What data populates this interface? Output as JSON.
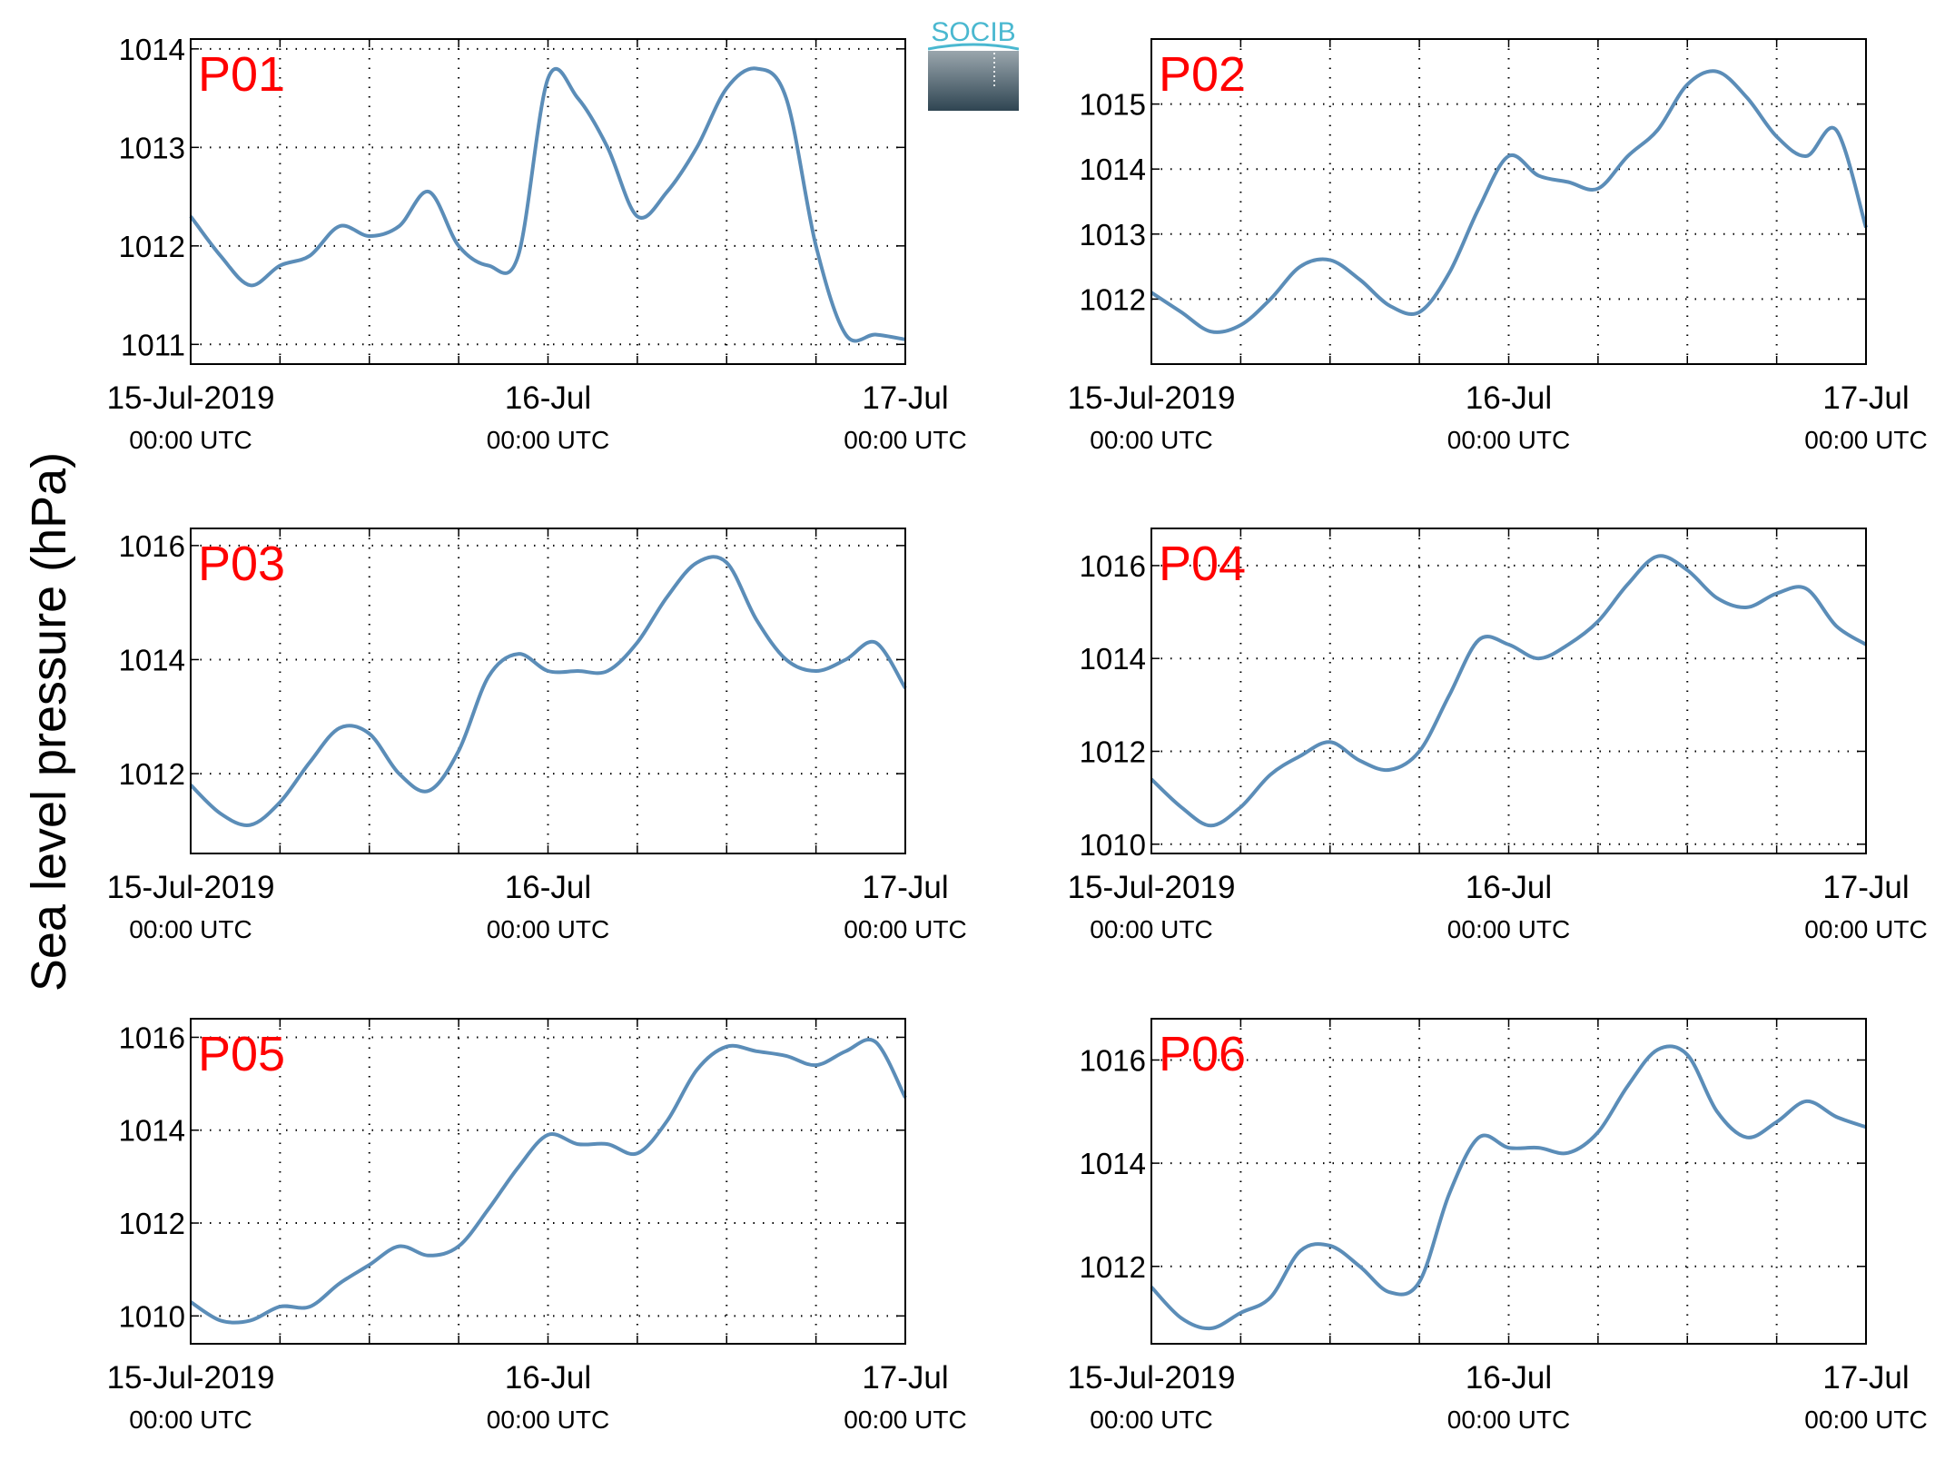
{
  "figure": {
    "ylabel": "Sea level pressure (hPa)",
    "logo_text": "SOCIB",
    "x_tick_labels": [
      {
        "date": "15-Jul-2019",
        "time": "00:00 UTC"
      },
      {
        "date": "16-Jul",
        "time": "00:00 UTC"
      },
      {
        "date": "17-Jul",
        "time": "00:00 UTC"
      }
    ]
  },
  "colors": {
    "line": "#5b8db8",
    "station_label": "#ff0000",
    "axes": "#000000",
    "grid": "#000000",
    "logo_text": "#4ab8d0",
    "logo_top": "#9aa6ad",
    "logo_bottom": "#2f4552"
  },
  "chart_data": [
    {
      "type": "line",
      "title": "P01",
      "xlabel": "",
      "ylabel": "",
      "xlim": [
        "2019-07-15 00:00",
        "2019-07-17 00:00"
      ],
      "ylim": [
        1010.8,
        1014.1
      ],
      "yticks": [
        1011,
        1012,
        1013,
        1014
      ],
      "grid": true,
      "x": [
        "2019-07-15 00:00",
        "2019-07-15 02:00",
        "2019-07-15 04:00",
        "2019-07-15 06:00",
        "2019-07-15 08:00",
        "2019-07-15 10:00",
        "2019-07-15 12:00",
        "2019-07-15 14:00",
        "2019-07-15 16:00",
        "2019-07-15 18:00",
        "2019-07-15 20:00",
        "2019-07-15 22:00",
        "2019-07-16 00:00",
        "2019-07-16 02:00",
        "2019-07-16 04:00",
        "2019-07-16 06:00",
        "2019-07-16 08:00",
        "2019-07-16 10:00",
        "2019-07-16 12:00",
        "2019-07-16 14:00",
        "2019-07-16 16:00",
        "2019-07-16 18:00",
        "2019-07-16 20:00",
        "2019-07-16 22:00",
        "2019-07-17 00:00"
      ],
      "series": [
        {
          "values": [
            1012.3,
            1011.9,
            1011.6,
            1011.8,
            1011.9,
            1012.2,
            1012.1,
            1012.2,
            1012.55,
            1012.0,
            1011.8,
            1011.9,
            1013.7,
            1013.5,
            1013.0,
            1012.3,
            1012.55,
            1013.0,
            1013.6,
            1013.8,
            1013.5,
            1012.0,
            1011.1,
            1011.1,
            1011.05
          ]
        }
      ]
    },
    {
      "type": "line",
      "title": "P02",
      "xlabel": "",
      "ylabel": "",
      "xlim": [
        "2019-07-15 00:00",
        "2019-07-17 00:00"
      ],
      "ylim": [
        1011.0,
        1016.0
      ],
      "yticks": [
        1012,
        1013,
        1014,
        1015
      ],
      "grid": true,
      "x": [
        "2019-07-15 00:00",
        "2019-07-15 02:00",
        "2019-07-15 04:00",
        "2019-07-15 06:00",
        "2019-07-15 08:00",
        "2019-07-15 10:00",
        "2019-07-15 12:00",
        "2019-07-15 14:00",
        "2019-07-15 16:00",
        "2019-07-15 18:00",
        "2019-07-15 20:00",
        "2019-07-15 22:00",
        "2019-07-16 00:00",
        "2019-07-16 02:00",
        "2019-07-16 04:00",
        "2019-07-16 06:00",
        "2019-07-16 08:00",
        "2019-07-16 10:00",
        "2019-07-16 12:00",
        "2019-07-16 14:00",
        "2019-07-16 16:00",
        "2019-07-16 18:00",
        "2019-07-16 20:00",
        "2019-07-16 22:00",
        "2019-07-17 00:00"
      ],
      "series": [
        {
          "values": [
            1012.1,
            1011.8,
            1011.5,
            1011.6,
            1012.0,
            1012.5,
            1012.6,
            1012.3,
            1011.9,
            1011.8,
            1012.4,
            1013.4,
            1014.2,
            1013.9,
            1013.8,
            1013.7,
            1014.2,
            1014.6,
            1015.3,
            1015.5,
            1015.1,
            1014.5,
            1014.2,
            1014.6,
            1013.1
          ]
        }
      ]
    },
    {
      "type": "line",
      "title": "P03",
      "xlabel": "",
      "ylabel": "",
      "xlim": [
        "2019-07-15 00:00",
        "2019-07-17 00:00"
      ],
      "ylim": [
        1010.6,
        1016.3
      ],
      "yticks": [
        1012,
        1014,
        1016
      ],
      "grid": true,
      "x": [
        "2019-07-15 00:00",
        "2019-07-15 02:00",
        "2019-07-15 04:00",
        "2019-07-15 06:00",
        "2019-07-15 08:00",
        "2019-07-15 10:00",
        "2019-07-15 12:00",
        "2019-07-15 14:00",
        "2019-07-15 16:00",
        "2019-07-15 18:00",
        "2019-07-15 20:00",
        "2019-07-15 22:00",
        "2019-07-16 00:00",
        "2019-07-16 02:00",
        "2019-07-16 04:00",
        "2019-07-16 06:00",
        "2019-07-16 08:00",
        "2019-07-16 10:00",
        "2019-07-16 12:00",
        "2019-07-16 14:00",
        "2019-07-16 16:00",
        "2019-07-16 18:00",
        "2019-07-16 20:00",
        "2019-07-16 22:00",
        "2019-07-17 00:00"
      ],
      "series": [
        {
          "values": [
            1011.8,
            1011.3,
            1011.1,
            1011.5,
            1012.2,
            1012.8,
            1012.7,
            1012.0,
            1011.7,
            1012.4,
            1013.7,
            1014.1,
            1013.8,
            1013.8,
            1013.8,
            1014.3,
            1015.1,
            1015.7,
            1015.7,
            1014.7,
            1014.0,
            1013.8,
            1014.0,
            1014.3,
            1013.5
          ]
        }
      ]
    },
    {
      "type": "line",
      "title": "P04",
      "xlabel": "",
      "ylabel": "",
      "xlim": [
        "2019-07-15 00:00",
        "2019-07-17 00:00"
      ],
      "ylim": [
        1009.8,
        1016.8
      ],
      "yticks": [
        1010,
        1012,
        1014,
        1016
      ],
      "grid": true,
      "x": [
        "2019-07-15 00:00",
        "2019-07-15 02:00",
        "2019-07-15 04:00",
        "2019-07-15 06:00",
        "2019-07-15 08:00",
        "2019-07-15 10:00",
        "2019-07-15 12:00",
        "2019-07-15 14:00",
        "2019-07-15 16:00",
        "2019-07-15 18:00",
        "2019-07-15 20:00",
        "2019-07-15 22:00",
        "2019-07-16 00:00",
        "2019-07-16 02:00",
        "2019-07-16 04:00",
        "2019-07-16 06:00",
        "2019-07-16 08:00",
        "2019-07-16 10:00",
        "2019-07-16 12:00",
        "2019-07-16 14:00",
        "2019-07-16 16:00",
        "2019-07-16 18:00",
        "2019-07-16 20:00",
        "2019-07-16 22:00",
        "2019-07-17 00:00"
      ],
      "series": [
        {
          "values": [
            1011.4,
            1010.8,
            1010.4,
            1010.8,
            1011.5,
            1011.9,
            1012.2,
            1011.8,
            1011.6,
            1012.0,
            1013.2,
            1014.4,
            1014.3,
            1014.0,
            1014.3,
            1014.8,
            1015.6,
            1016.2,
            1015.9,
            1015.3,
            1015.1,
            1015.4,
            1015.5,
            1014.7,
            1014.3
          ]
        }
      ]
    },
    {
      "type": "line",
      "title": "P05",
      "xlabel": "",
      "ylabel": "",
      "xlim": [
        "2019-07-15 00:00",
        "2019-07-17 00:00"
      ],
      "ylim": [
        1009.4,
        1016.4
      ],
      "yticks": [
        1010,
        1012,
        1014,
        1016
      ],
      "grid": true,
      "x": [
        "2019-07-15 00:00",
        "2019-07-15 02:00",
        "2019-07-15 04:00",
        "2019-07-15 06:00",
        "2019-07-15 08:00",
        "2019-07-15 10:00",
        "2019-07-15 12:00",
        "2019-07-15 14:00",
        "2019-07-15 16:00",
        "2019-07-15 18:00",
        "2019-07-15 20:00",
        "2019-07-15 22:00",
        "2019-07-16 00:00",
        "2019-07-16 02:00",
        "2019-07-16 04:00",
        "2019-07-16 06:00",
        "2019-07-16 08:00",
        "2019-07-16 10:00",
        "2019-07-16 12:00",
        "2019-07-16 14:00",
        "2019-07-16 16:00",
        "2019-07-16 18:00",
        "2019-07-16 20:00",
        "2019-07-16 22:00",
        "2019-07-17 00:00"
      ],
      "series": [
        {
          "values": [
            1010.3,
            1009.9,
            1009.9,
            1010.2,
            1010.2,
            1010.7,
            1011.1,
            1011.5,
            1011.3,
            1011.5,
            1012.3,
            1013.2,
            1013.9,
            1013.7,
            1013.7,
            1013.5,
            1014.2,
            1015.3,
            1015.8,
            1015.7,
            1015.6,
            1015.4,
            1015.7,
            1015.9,
            1014.7
          ]
        }
      ]
    },
    {
      "type": "line",
      "title": "P06",
      "xlabel": "",
      "ylabel": "",
      "xlim": [
        "2019-07-15 00:00",
        "2019-07-17 00:00"
      ],
      "ylim": [
        1010.5,
        1016.8
      ],
      "yticks": [
        1012,
        1014,
        1016
      ],
      "grid": true,
      "x": [
        "2019-07-15 00:00",
        "2019-07-15 02:00",
        "2019-07-15 04:00",
        "2019-07-15 06:00",
        "2019-07-15 08:00",
        "2019-07-15 10:00",
        "2019-07-15 12:00",
        "2019-07-15 14:00",
        "2019-07-15 16:00",
        "2019-07-15 18:00",
        "2019-07-15 20:00",
        "2019-07-15 22:00",
        "2019-07-16 00:00",
        "2019-07-16 02:00",
        "2019-07-16 04:00",
        "2019-07-16 06:00",
        "2019-07-16 08:00",
        "2019-07-16 10:00",
        "2019-07-16 12:00",
        "2019-07-16 14:00",
        "2019-07-16 16:00",
        "2019-07-16 18:00",
        "2019-07-16 20:00",
        "2019-07-16 22:00",
        "2019-07-17 00:00"
      ],
      "series": [
        {
          "values": [
            1011.6,
            1011.0,
            1010.8,
            1011.1,
            1011.4,
            1012.3,
            1012.4,
            1012.0,
            1011.5,
            1011.7,
            1013.4,
            1014.5,
            1014.3,
            1014.3,
            1014.2,
            1014.6,
            1015.5,
            1016.2,
            1016.1,
            1015.0,
            1014.5,
            1014.8,
            1015.2,
            1014.9,
            1014.7
          ]
        }
      ]
    }
  ]
}
